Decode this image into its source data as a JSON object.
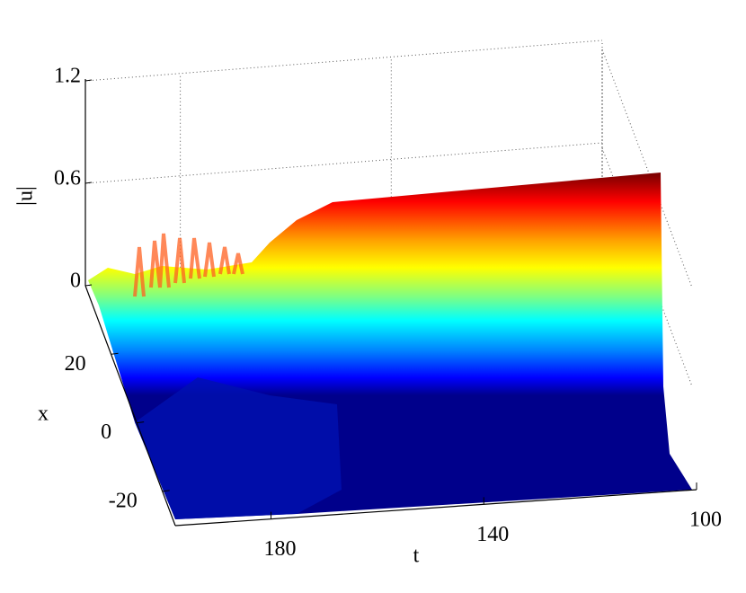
{
  "chart_data": {
    "type": "surface3d",
    "xlabel": "t",
    "ylabel": "x",
    "zlabel": "|u|",
    "tlim": [
      100,
      198
    ],
    "tticks": [
      180,
      140,
      100
    ],
    "xlim": [
      -30,
      40
    ],
    "xticks": [
      -20,
      0,
      20
    ],
    "zlim": [
      0,
      1.2
    ],
    "zticks": [
      0,
      0.6,
      1.2
    ],
    "colormap": "jet",
    "grid": true
  }
}
